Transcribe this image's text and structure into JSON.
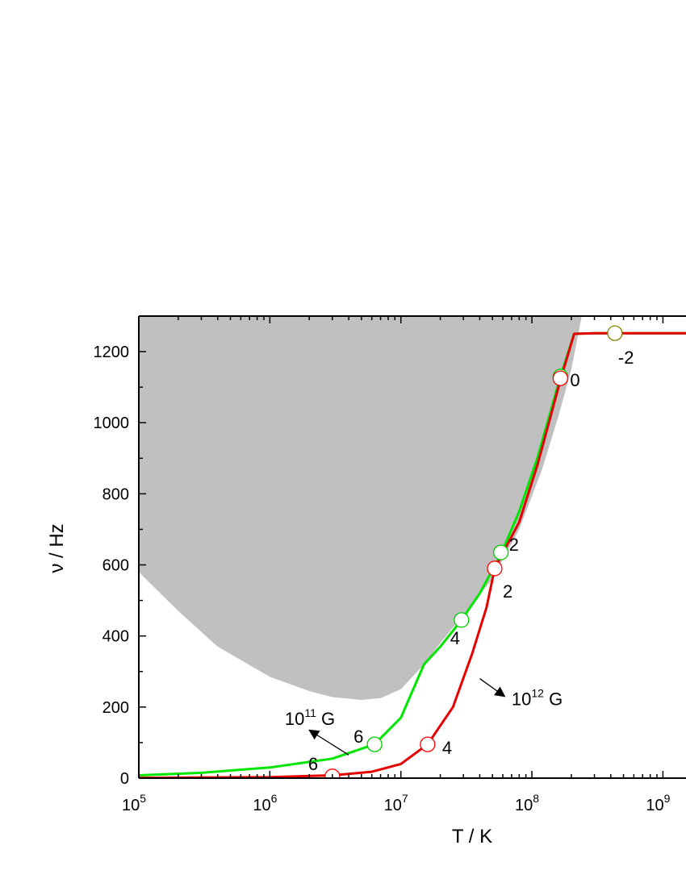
{
  "chart_data": {
    "type": "line",
    "xlabel": "T / K",
    "ylabel": "ν / Hz",
    "xscale": "log",
    "xlim": [
      100000,
      1500000000
    ],
    "ylim": [
      0,
      1300
    ],
    "grid": false,
    "x_ticks": [
      {
        "value": 100000,
        "base": "10",
        "exp": "5"
      },
      {
        "value": 1000000,
        "base": "10",
        "exp": "6"
      },
      {
        "value": 10000000,
        "base": "10",
        "exp": "7"
      },
      {
        "value": 100000000,
        "base": "10",
        "exp": "8"
      },
      {
        "value": 1000000000,
        "base": "10",
        "exp": "9"
      }
    ],
    "y_ticks": [
      0,
      200,
      400,
      600,
      800,
      1000,
      1200
    ],
    "shaded_region": {
      "color": "#c0c0c0",
      "left_edge": [
        [
          100000,
          580
        ],
        [
          200000,
          470
        ],
        [
          400000,
          370
        ],
        [
          1000000,
          285
        ],
        [
          2000000,
          245
        ],
        [
          3000000,
          228
        ],
        [
          5000000,
          220
        ],
        [
          7000000,
          225
        ],
        [
          10000000,
          250
        ],
        [
          15000000,
          320
        ],
        [
          20000000,
          380
        ],
        [
          30000000,
          460
        ],
        [
          50000000,
          560
        ],
        [
          80000000,
          700
        ],
        [
          120000000,
          870
        ],
        [
          160000000,
          1020
        ],
        [
          200000000,
          1150
        ],
        [
          240000000,
          1300
        ]
      ]
    },
    "series": [
      {
        "color": "#00e600",
        "points": [
          [
            100000,
            8
          ],
          [
            300000,
            15
          ],
          [
            1000000,
            30
          ],
          [
            3000000,
            55
          ],
          [
            6300000,
            95
          ],
          [
            10000000,
            170
          ],
          [
            15000000,
            320
          ],
          [
            20000000,
            370
          ],
          [
            29000000,
            445
          ],
          [
            40000000,
            520
          ],
          [
            58000000,
            630
          ],
          [
            80000000,
            750
          ],
          [
            110000000,
            900
          ],
          [
            165000000,
            1130
          ],
          [
            210000000,
            1250
          ],
          [
            300000000,
            1252
          ],
          [
            1500000000,
            1252
          ]
        ]
      },
      {
        "color": "#e60000",
        "points": [
          [
            100000,
            1
          ],
          [
            1000000,
            3
          ],
          [
            3000000,
            8
          ],
          [
            6000000,
            18
          ],
          [
            10000000,
            40
          ],
          [
            16000000,
            95
          ],
          [
            25000000,
            200
          ],
          [
            35000000,
            350
          ],
          [
            45000000,
            480
          ],
          [
            52000000,
            590
          ],
          [
            80000000,
            720
          ],
          [
            110000000,
            880
          ],
          [
            165000000,
            1120
          ],
          [
            210000000,
            1250
          ],
          [
            300000000,
            1252
          ],
          [
            1500000000,
            1252
          ]
        ]
      }
    ],
    "markers": [
      {
        "x": 6300000,
        "y": 95,
        "label": "6",
        "color": "#00cc00"
      },
      {
        "x": 29000000,
        "y": 445,
        "label": "4",
        "color": "#00cc00"
      },
      {
        "x": 58000000,
        "y": 635,
        "label": "2",
        "color": "#00cc00"
      },
      {
        "x": 165000000,
        "y": 1130,
        "label": "0",
        "color": "#00cc00"
      },
      {
        "x": 3000000,
        "y": 5,
        "label": "6",
        "color": "#ff0000"
      },
      {
        "x": 16000000,
        "y": 95,
        "label": "4",
        "color": "#ff0000"
      },
      {
        "x": 52000000,
        "y": 590,
        "label": "2",
        "color": "#ff0000"
      },
      {
        "x": 165000000,
        "y": 1125,
        "label": "",
        "color": "#ff0000"
      },
      {
        "x": 430000000,
        "y": 1252,
        "label": "-2",
        "color": "#808000"
      }
    ],
    "annotations": [
      {
        "text": "10",
        "sup": "11",
        "suffix": " G",
        "x": 1300000,
        "y": 150,
        "arrow_from": [
          4000000,
          65
        ],
        "arrow_to": [
          2000000,
          135
        ]
      },
      {
        "text": "10",
        "sup": "12",
        "suffix": " G",
        "x": 70000000,
        "y": 205,
        "arrow_from": [
          40000000,
          280
        ],
        "arrow_to": [
          62000000,
          230
        ]
      }
    ]
  }
}
